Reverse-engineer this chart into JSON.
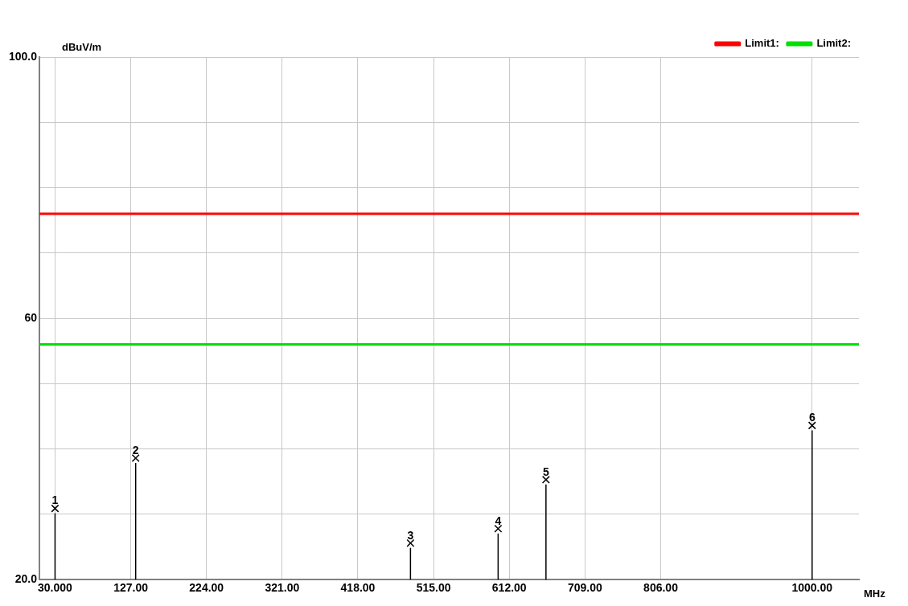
{
  "chart_data": {
    "type": "lollipop",
    "xlabel": "MHz",
    "ylabel": "dBuV/m",
    "xlim": [
      10,
      1060
    ],
    "ylim": [
      20,
      100
    ],
    "xticks": [
      {
        "value": 30,
        "label": "30.000"
      },
      {
        "value": 127,
        "label": "127.00"
      },
      {
        "value": 224,
        "label": "224.00"
      },
      {
        "value": 321,
        "label": "321.00"
      },
      {
        "value": 418,
        "label": "418.00"
      },
      {
        "value": 515,
        "label": "515.00"
      },
      {
        "value": 612,
        "label": "612.00"
      },
      {
        "value": 709,
        "label": "709.00"
      },
      {
        "value": 806,
        "label": "806.00"
      },
      {
        "value": 1000,
        "label": "1000.00"
      }
    ],
    "yticks": [
      {
        "value": 20,
        "label": "20.0"
      },
      {
        "value": 30,
        "label": null
      },
      {
        "value": 40,
        "label": null
      },
      {
        "value": 50,
        "label": null
      },
      {
        "value": 60,
        "label": "60"
      },
      {
        "value": 70,
        "label": null
      },
      {
        "value": 80,
        "label": null
      },
      {
        "value": 90,
        "label": null
      },
      {
        "value": 100,
        "label": "100.0"
      }
    ],
    "grid": true,
    "legend": "top right",
    "annotations": [
      {
        "text": "1",
        "x": 30,
        "y": 30.9
      },
      {
        "text": "2",
        "x": 133.3,
        "y": 38.6
      },
      {
        "text": "3",
        "x": 485.4,
        "y": 25.6
      },
      {
        "text": "4",
        "x": 597.7,
        "y": 27.8
      },
      {
        "text": "5",
        "x": 659,
        "y": 35.3
      },
      {
        "text": "6",
        "x": 1000,
        "y": 43.6
      }
    ],
    "series": [
      {
        "x": [
          30,
          133.3,
          485.4,
          597.7,
          659,
          1000
        ],
        "values": [
          30.9,
          38.6,
          25.6,
          27.8,
          35.3,
          43.6
        ],
        "color": "#000000",
        "marker": "cross"
      },
      {
        "type": "line",
        "name": "Limit1:",
        "color": "#ff0000",
        "x": [
          10,
          1060
        ],
        "values": [
          76,
          76
        ],
        "marker": "none"
      },
      {
        "type": "line",
        "name": "Limit2:",
        "color": "#00e000",
        "x": [
          10,
          1060
        ],
        "values": [
          56,
          56
        ],
        "marker": "none"
      }
    ]
  }
}
